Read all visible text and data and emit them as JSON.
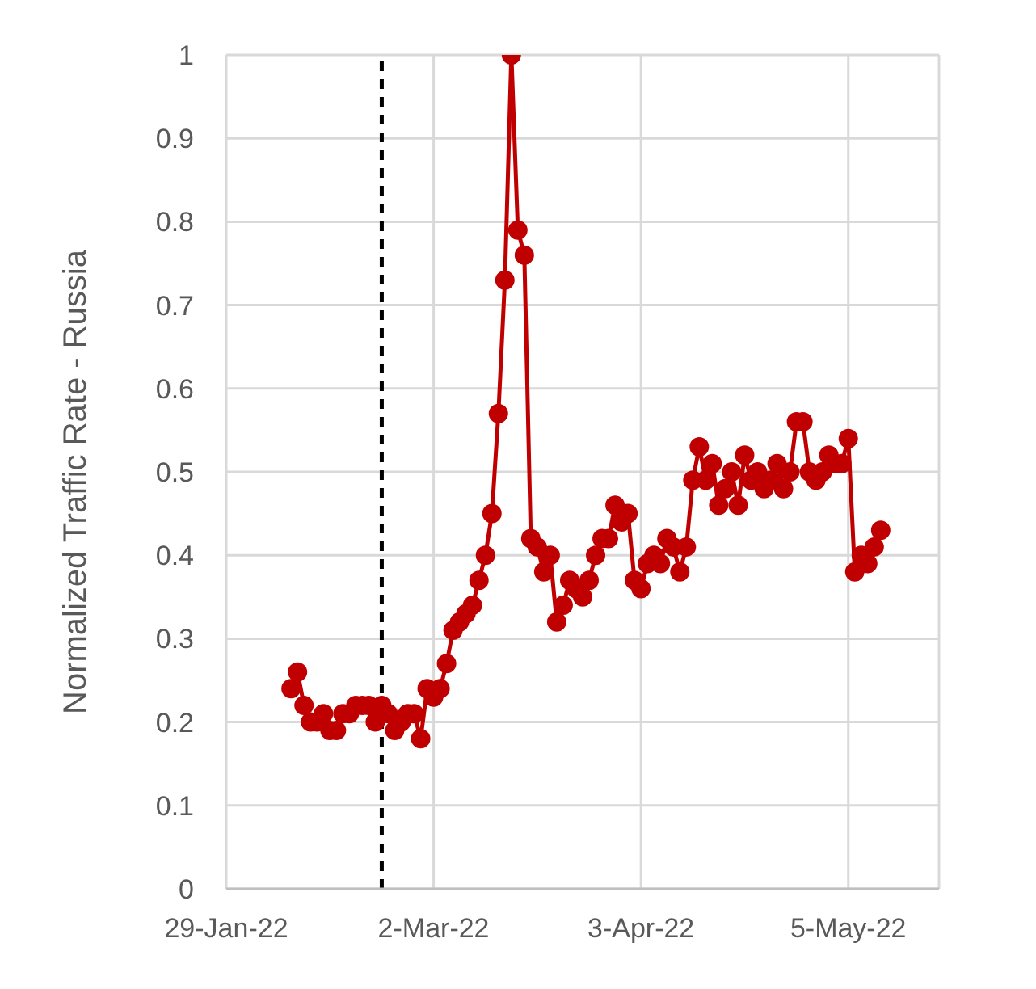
{
  "chart_data": {
    "type": "line",
    "ylabel": "Normalized Traffic Rate - Russia",
    "marker": "circle",
    "line_style": "solid",
    "grid": true,
    "x": [
      "2022-02-08",
      "2022-02-09",
      "2022-02-10",
      "2022-02-11",
      "2022-02-12",
      "2022-02-13",
      "2022-02-14",
      "2022-02-15",
      "2022-02-16",
      "2022-02-17",
      "2022-02-18",
      "2022-02-19",
      "2022-02-20",
      "2022-02-21",
      "2022-02-22",
      "2022-02-23",
      "2022-02-24",
      "2022-02-25",
      "2022-02-26",
      "2022-02-27",
      "2022-02-28",
      "2022-03-01",
      "2022-03-02",
      "2022-03-03",
      "2022-03-04",
      "2022-03-05",
      "2022-03-06",
      "2022-03-07",
      "2022-03-08",
      "2022-03-09",
      "2022-03-10",
      "2022-03-11",
      "2022-03-12",
      "2022-03-13",
      "2022-03-14",
      "2022-03-15",
      "2022-03-16",
      "2022-03-17",
      "2022-03-18",
      "2022-03-19",
      "2022-03-20",
      "2022-03-21",
      "2022-03-22",
      "2022-03-23",
      "2022-03-24",
      "2022-03-25",
      "2022-03-26",
      "2022-03-27",
      "2022-03-28",
      "2022-03-29",
      "2022-03-30",
      "2022-03-31",
      "2022-04-01",
      "2022-04-02",
      "2022-04-03",
      "2022-04-04",
      "2022-04-05",
      "2022-04-06",
      "2022-04-07",
      "2022-04-08",
      "2022-04-09",
      "2022-04-10",
      "2022-04-11",
      "2022-04-12",
      "2022-04-13",
      "2022-04-14",
      "2022-04-15",
      "2022-04-16",
      "2022-04-17",
      "2022-04-18",
      "2022-04-19",
      "2022-04-20",
      "2022-04-21",
      "2022-04-22",
      "2022-04-23",
      "2022-04-24",
      "2022-04-25",
      "2022-04-26",
      "2022-04-27",
      "2022-04-28",
      "2022-04-29",
      "2022-04-30",
      "2022-05-01",
      "2022-05-02",
      "2022-05-03",
      "2022-05-04",
      "2022-05-05",
      "2022-05-06",
      "2022-05-07",
      "2022-05-08",
      "2022-05-09",
      "2022-05-10"
    ],
    "series": [
      {
        "color": "#c00000",
        "values": [
          0.24,
          0.26,
          0.22,
          0.2,
          0.2,
          0.21,
          0.19,
          0.19,
          0.21,
          0.21,
          0.22,
          0.22,
          0.22,
          0.2,
          0.22,
          0.21,
          0.19,
          0.2,
          0.21,
          0.21,
          0.18,
          0.24,
          0.23,
          0.24,
          0.27,
          0.31,
          0.32,
          0.33,
          0.34,
          0.37,
          0.4,
          0.45,
          0.57,
          0.73,
          1.0,
          0.79,
          0.76,
          0.42,
          0.41,
          0.38,
          0.4,
          0.32,
          0.34,
          0.37,
          0.36,
          0.35,
          0.37,
          0.4,
          0.42,
          0.42,
          0.46,
          0.44,
          0.45,
          0.37,
          0.36,
          0.39,
          0.4,
          0.39,
          0.42,
          0.41,
          0.38,
          0.41,
          0.49,
          0.53,
          0.49,
          0.51,
          0.46,
          0.48,
          0.5,
          0.46,
          0.52,
          0.49,
          0.5,
          0.48,
          0.49,
          0.51,
          0.48,
          0.5,
          0.56,
          0.56,
          0.5,
          0.49,
          0.5,
          0.52,
          0.51,
          0.51,
          0.54,
          0.38,
          0.4,
          0.39,
          0.41,
          0.43
        ]
      }
    ],
    "xlim": [
      "2022-01-29",
      "2022-05-19"
    ],
    "xticks": [
      {
        "value": "2022-01-29",
        "label": "29-Jan-22"
      },
      {
        "value": "2022-03-02",
        "label": "2-Mar-22"
      },
      {
        "value": "2022-04-03",
        "label": "3-Apr-22"
      },
      {
        "value": "2022-05-05",
        "label": "5-May-22"
      }
    ],
    "ylim": [
      0,
      1
    ],
    "yticks": [
      0,
      0.1,
      0.2,
      0.3,
      0.4,
      0.5,
      0.6,
      0.7,
      0.8,
      0.9,
      1
    ],
    "ref_lines": [
      {
        "axis": "x",
        "value": "2022-02-22",
        "color": "#000000",
        "line_style": "dashed"
      }
    ]
  }
}
